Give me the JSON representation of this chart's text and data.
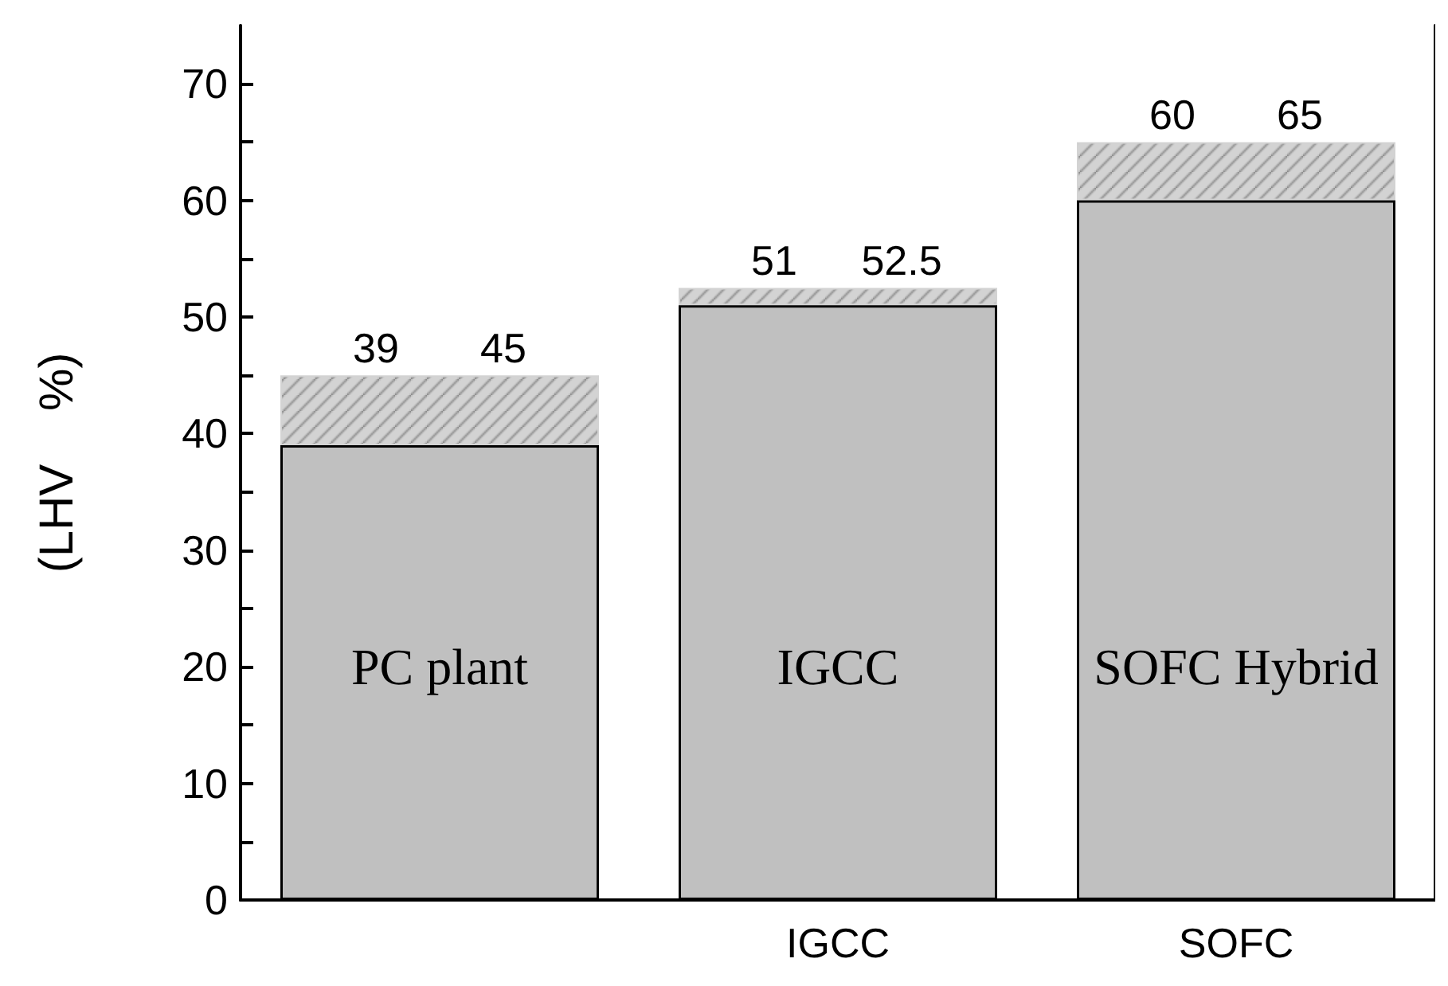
{
  "chart_data": {
    "type": "bar",
    "stacked": true,
    "ylabel": "(LHV    %)",
    "categories": [
      null,
      "IGCC",
      "SOFC"
    ],
    "series": [
      {
        "color": "#c0c0c0",
        "values": [
          39,
          51,
          60
        ],
        "value_labels": [
          "39",
          "51",
          "60"
        ]
      },
      {
        "color": "#d3d3d3",
        "values": [
          6,
          1.5,
          5
        ]
      }
    ],
    "totals": [
      "45",
      "52.5",
      "65"
    ],
    "ylim": [
      0,
      75
    ],
    "yticks": [
      0,
      {
        "value": 5,
        "label": null
      },
      10,
      {
        "value": 15,
        "label": null
      },
      20,
      {
        "value": 25,
        "label": null
      },
      30,
      {
        "value": 35,
        "label": null
      },
      40,
      {
        "value": 45,
        "label": null
      },
      50,
      {
        "value": 55,
        "label": null
      },
      60,
      {
        "value": 65,
        "label": null
      },
      70
    ],
    "annotations": [
      "PC plant",
      "IGCC",
      "SOFC Hybrid"
    ],
    "grid": false
  }
}
